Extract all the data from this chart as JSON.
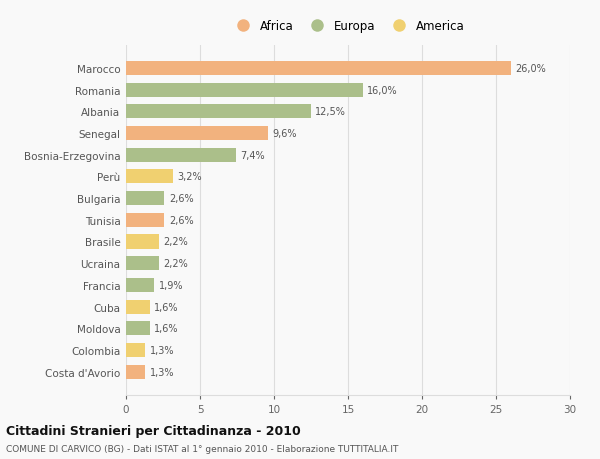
{
  "countries": [
    "Marocco",
    "Romania",
    "Albania",
    "Senegal",
    "Bosnia-Erzegovina",
    "Perù",
    "Bulgaria",
    "Tunisia",
    "Brasile",
    "Ucraina",
    "Francia",
    "Cuba",
    "Moldova",
    "Colombia",
    "Costa d'Avorio"
  ],
  "values": [
    26.0,
    16.0,
    12.5,
    9.6,
    7.4,
    3.2,
    2.6,
    2.6,
    2.2,
    2.2,
    1.9,
    1.6,
    1.6,
    1.3,
    1.3
  ],
  "labels": [
    "26,0%",
    "16,0%",
    "12,5%",
    "9,6%",
    "7,4%",
    "3,2%",
    "2,6%",
    "2,6%",
    "2,2%",
    "2,2%",
    "1,9%",
    "1,6%",
    "1,6%",
    "1,3%",
    "1,3%"
  ],
  "continents": [
    "Africa",
    "Europa",
    "Europa",
    "Africa",
    "Europa",
    "America",
    "Europa",
    "Africa",
    "America",
    "Europa",
    "Europa",
    "America",
    "Europa",
    "America",
    "Africa"
  ],
  "colors": {
    "Africa": "#F2B27E",
    "Europa": "#ABBF8A",
    "America": "#F0D070"
  },
  "legend_labels": [
    "Africa",
    "Europa",
    "America"
  ],
  "legend_colors": [
    "#F2B27E",
    "#ABBF8A",
    "#F0D070"
  ],
  "title": "Cittadini Stranieri per Cittadinanza - 2010",
  "subtitle": "COMUNE DI CARVICO (BG) - Dati ISTAT al 1° gennaio 2010 - Elaborazione TUTTITALIA.IT",
  "xlim": [
    0,
    30
  ],
  "xticks": [
    0,
    5,
    10,
    15,
    20,
    25,
    30
  ],
  "background_color": "#f9f9f9",
  "grid_color": "#dddddd",
  "bar_height": 0.65
}
